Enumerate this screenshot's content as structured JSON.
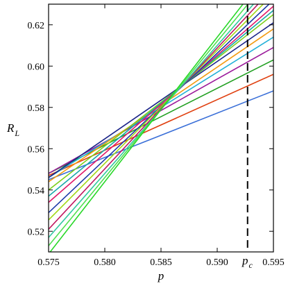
{
  "chart_data": {
    "type": "line",
    "title": "",
    "xlabel": "p",
    "ylabel": {
      "main": "R",
      "sub": "L"
    },
    "xlim": [
      0.575,
      0.595
    ],
    "ylim": [
      0.51,
      0.63
    ],
    "xticks": [
      "0.575",
      "0.580",
      "0.585",
      "0.590",
      "0.595"
    ],
    "yticks": [
      "0.52",
      "0.54",
      "0.56",
      "0.58",
      "0.60",
      "0.62"
    ],
    "xtick_values": [
      0.575,
      0.58,
      0.585,
      0.59,
      0.595
    ],
    "ytick_values": [
      0.52,
      0.54,
      0.56,
      0.58,
      0.6,
      0.62
    ],
    "critical_point": {
      "label_main": "p",
      "label_sub": "c",
      "x": 0.5927
    },
    "grid": false,
    "legend": "none",
    "series": [
      {
        "color": "#3a6fd8",
        "values": [
          [
            0.575,
            0.545
          ],
          [
            0.595,
            0.588
          ]
        ]
      },
      {
        "color": "#e04010",
        "values": [
          [
            0.575,
            0.547
          ],
          [
            0.595,
            0.596
          ]
        ]
      },
      {
        "color": "#22a022",
        "values": [
          [
            0.575,
            0.548
          ],
          [
            0.595,
            0.603
          ]
        ]
      },
      {
        "color": "#9b1a9b",
        "values": [
          [
            0.575,
            0.548
          ],
          [
            0.595,
            0.609
          ]
        ]
      },
      {
        "color": "#22b0d8",
        "values": [
          [
            0.575,
            0.546
          ],
          [
            0.595,
            0.614
          ]
        ]
      },
      {
        "color": "#f29a10",
        "values": [
          [
            0.575,
            0.544
          ],
          [
            0.595,
            0.618
          ]
        ]
      },
      {
        "color": "#1a2488",
        "values": [
          [
            0.575,
            0.546
          ],
          [
            0.595,
            0.621
          ]
        ]
      },
      {
        "color": "#7ccf1a",
        "values": [
          [
            0.575,
            0.54
          ],
          [
            0.595,
            0.625
          ]
        ]
      },
      {
        "color": "#18a8a8",
        "values": [
          [
            0.575,
            0.537
          ],
          [
            0.595,
            0.627
          ]
        ]
      },
      {
        "color": "#e01868",
        "values": [
          [
            0.575,
            0.534
          ],
          [
            0.595,
            0.629
          ]
        ]
      },
      {
        "color": "#1a3aa8",
        "values": [
          [
            0.575,
            0.529
          ],
          [
            0.595,
            0.632
          ]
        ]
      },
      {
        "color": "#a2d818",
        "values": [
          [
            0.575,
            0.5255
          ],
          [
            0.595,
            0.635
          ]
        ]
      },
      {
        "color": "#c01860",
        "values": [
          [
            0.575,
            0.521
          ],
          [
            0.595,
            0.638
          ]
        ]
      },
      {
        "color": "#32c8a0",
        "values": [
          [
            0.575,
            0.517
          ],
          [
            0.595,
            0.641
          ]
        ]
      },
      {
        "color": "#50e050",
        "values": [
          [
            0.575,
            0.513
          ],
          [
            0.595,
            0.645
          ]
        ]
      },
      {
        "color": "#28d828",
        "values": [
          [
            0.575,
            0.509
          ],
          [
            0.595,
            0.649
          ]
        ]
      }
    ]
  }
}
